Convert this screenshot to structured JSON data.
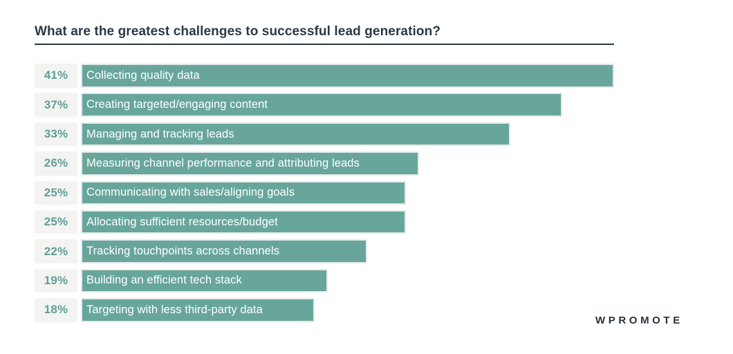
{
  "title": "What are the greatest challenges to successful lead generation?",
  "logo": "WPROMOTE",
  "colors": {
    "background": "#ffffff",
    "title_text": "#2b3945",
    "bar": "#68a69c",
    "bar_border": "#e2ebe8",
    "bar_label_text": "#ffffff",
    "value_text": "#5f9f96",
    "value_bg": "#f3f3f2",
    "logo_text": "#28303c"
  },
  "chart_data": {
    "type": "bar",
    "orientation": "horizontal",
    "title": "What are the greatest challenges to successful lead generation?",
    "unit": "%",
    "categories": [
      "Collecting quality data",
      "Creating targeted/engaging content",
      "Managing and tracking leads",
      "Measuring channel performance and attributing leads",
      "Communicating with sales/aligning goals",
      "Allocating sufficient resources/budget",
      "Tracking touchpoints across channels",
      "Building an efficient tech stack",
      "Targeting with less third-party data"
    ],
    "values": [
      41,
      37,
      33,
      26,
      25,
      25,
      22,
      19,
      18
    ],
    "value_labels": [
      "41%",
      "37%",
      "33%",
      "26%",
      "25%",
      "25%",
      "22%",
      "19%",
      "18%"
    ],
    "xlim": [
      0,
      41
    ],
    "grid": false,
    "legend": false,
    "value_label_position": "left-of-bar",
    "category_label_position": "inside-bar"
  }
}
